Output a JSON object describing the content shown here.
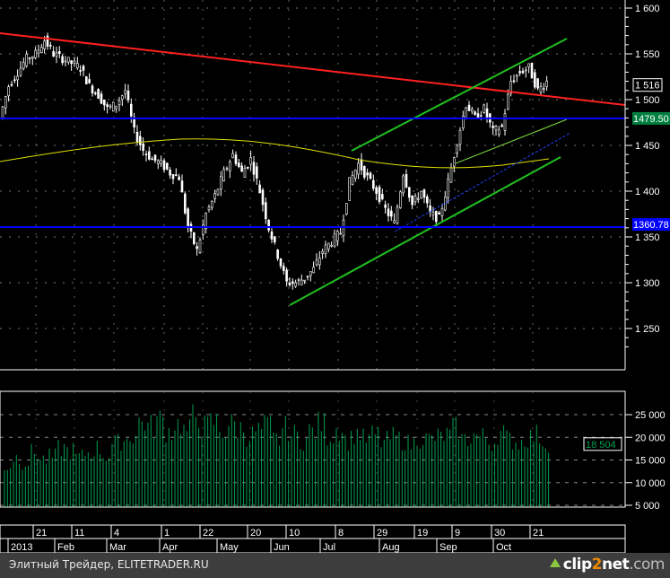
{
  "chart_data": {
    "type": "candlestick",
    "price_axis": {
      "ticks": [
        "1 600",
        "1 550",
        "1 500",
        "1 450",
        "1 400",
        "1 350",
        "1 300",
        "1 250"
      ],
      "range": [
        1225,
        1605
      ]
    },
    "current_price_label": "1 516",
    "levels": [
      {
        "label": "1479.50",
        "value": 1479.5,
        "color": "#0000ff",
        "label_bg": "#008040"
      },
      {
        "label": "1360.78",
        "value": 1360.78,
        "color": "#0000ff",
        "label_bg": "#0000ff"
      }
    ],
    "close": [
      1480,
      1515,
      1530,
      1545,
      1550,
      1565,
      1550,
      1545,
      1540,
      1535,
      1515,
      1505,
      1490,
      1495,
      1510,
      1465,
      1445,
      1435,
      1430,
      1420,
      1415,
      1360,
      1335,
      1375,
      1395,
      1420,
      1440,
      1420,
      1435,
      1400,
      1360,
      1330,
      1300,
      1300,
      1305,
      1315,
      1335,
      1345,
      1355,
      1410,
      1430,
      1415,
      1400,
      1380,
      1365,
      1420,
      1385,
      1400,
      1375,
      1370,
      1410,
      1455,
      1495,
      1480,
      1490,
      1465,
      1470,
      1520,
      1530,
      1535,
      1510,
      1520
    ],
    "volume_axis": {
      "ticks": [
        "25 000",
        "20 000",
        "15 000",
        "10 000",
        "5 000"
      ],
      "range": [
        5000,
        27000
      ]
    },
    "current_volume_label": "18 504",
    "volume": [
      14000,
      16000,
      15000,
      17000,
      15500,
      16000,
      18000,
      17500,
      16000,
      17000,
      18000,
      16500,
      19000,
      20000,
      21000,
      24000,
      23000,
      24500,
      22000,
      23500,
      22000,
      25500,
      23000,
      24000,
      22000,
      23500,
      22500,
      21000,
      22000,
      23000,
      20000,
      22500,
      21000,
      20000,
      22000,
      23500,
      21000,
      22500,
      20000,
      21500,
      20000,
      21000,
      19500,
      20500,
      20000,
      19000,
      20500,
      20000,
      20500,
      21000,
      22500,
      20000,
      21000,
      20500,
      19500,
      21500,
      20000,
      19500,
      20500,
      21000,
      19500,
      18504
    ],
    "date_axis": {
      "days": [
        "21",
        "11",
        "4",
        "1",
        "22",
        "20",
        "10",
        "8",
        "29",
        "19",
        "9",
        "30",
        "21"
      ],
      "months": [
        "2013",
        "Feb",
        "Mar",
        "Apr",
        "May",
        "Jun",
        "Jul",
        "Aug",
        "Sep",
        "Oct"
      ]
    },
    "colors": {
      "up": "#ffffff",
      "down": "#ffffff",
      "trend": "#ff2020",
      "channel": "#20c020",
      "ma": "#e0e000",
      "volume": "#00a050"
    }
  },
  "footer": {
    "caption": "Элитный Трейдер, ELITETRADER.RU",
    "logo_a": "clip",
    "logo_b": "2",
    "logo_c": "net",
    "logo_d": ".com"
  }
}
